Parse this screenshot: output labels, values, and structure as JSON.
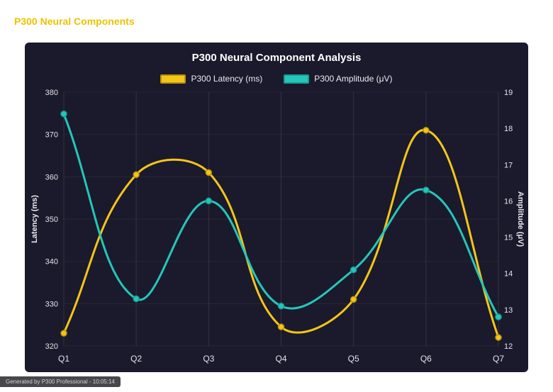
{
  "header": {
    "title": "P300 Neural Components"
  },
  "footer": {
    "status": "Generated by P300 Professional - 10:05:14"
  },
  "chart_data": {
    "type": "line",
    "title": "P300 Neural Component Analysis",
    "categories": [
      "Q1",
      "Q2",
      "Q3",
      "Q4",
      "Q5",
      "Q6",
      "Q7"
    ],
    "series": [
      {
        "name": "P300 Latency (ms)",
        "axis": "left",
        "color": "#f5c518",
        "border_color": "#b8940e",
        "values": [
          323,
          360.5,
          361,
          324.5,
          331,
          371,
          322
        ]
      },
      {
        "name": "P300 Amplitude (μV)",
        "axis": "right",
        "color": "#26c6b9",
        "border_color": "#17a094",
        "values": [
          18.4,
          13.3,
          16.0,
          13.1,
          14.1,
          16.3,
          12.8
        ]
      }
    ],
    "left_axis": {
      "label": "Latency (ms)",
      "min": 320,
      "max": 380,
      "step": 10
    },
    "right_axis": {
      "label": "Amplitude (μV)",
      "min": 12,
      "max": 19,
      "step": 1
    },
    "grid": true,
    "legend_position": "top",
    "line_tension": 0.4
  },
  "colors": {
    "page_bg": "#ffffff",
    "panel_bg": "#1a1a2c",
    "title_text": "#ffffff",
    "tick_text": "#e3e3ec",
    "header_accent": "#eec200",
    "grid_vertical": "rgba(255,255,255,0.10)",
    "grid_horizontal": "rgba(255,255,255,0.05)",
    "footer_bg": "#47474c",
    "footer_text": "#d2d2d6"
  }
}
